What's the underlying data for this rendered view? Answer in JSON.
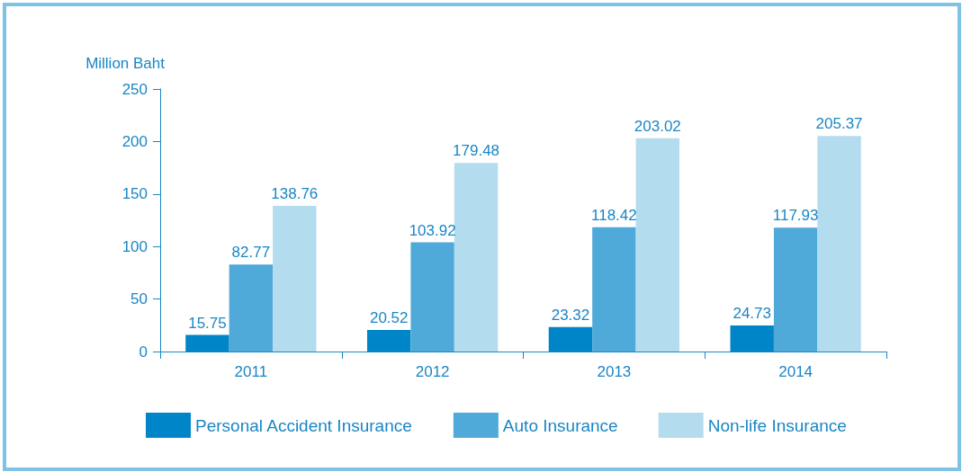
{
  "chart_data": {
    "type": "bar",
    "ylabel": "Million Baht",
    "categories": [
      "2011",
      "2012",
      "2013",
      "2014"
    ],
    "series": [
      {
        "name": "Personal Accident Insurance",
        "color": "#0085c8",
        "values": [
          15.75,
          20.52,
          23.32,
          24.73
        ]
      },
      {
        "name": "Auto Insurance",
        "color": "#4fa9d9",
        "values": [
          82.77,
          103.92,
          118.42,
          117.93
        ]
      },
      {
        "name": "Non-life Insurance",
        "color": "#b4dcef",
        "values": [
          138.76,
          179.48,
          203.02,
          205.37
        ]
      }
    ],
    "ylim": [
      0,
      250
    ],
    "yticks": [
      0,
      50,
      100,
      150,
      200,
      250
    ],
    "grid": false,
    "legend": "bottom",
    "data_labels": true
  }
}
